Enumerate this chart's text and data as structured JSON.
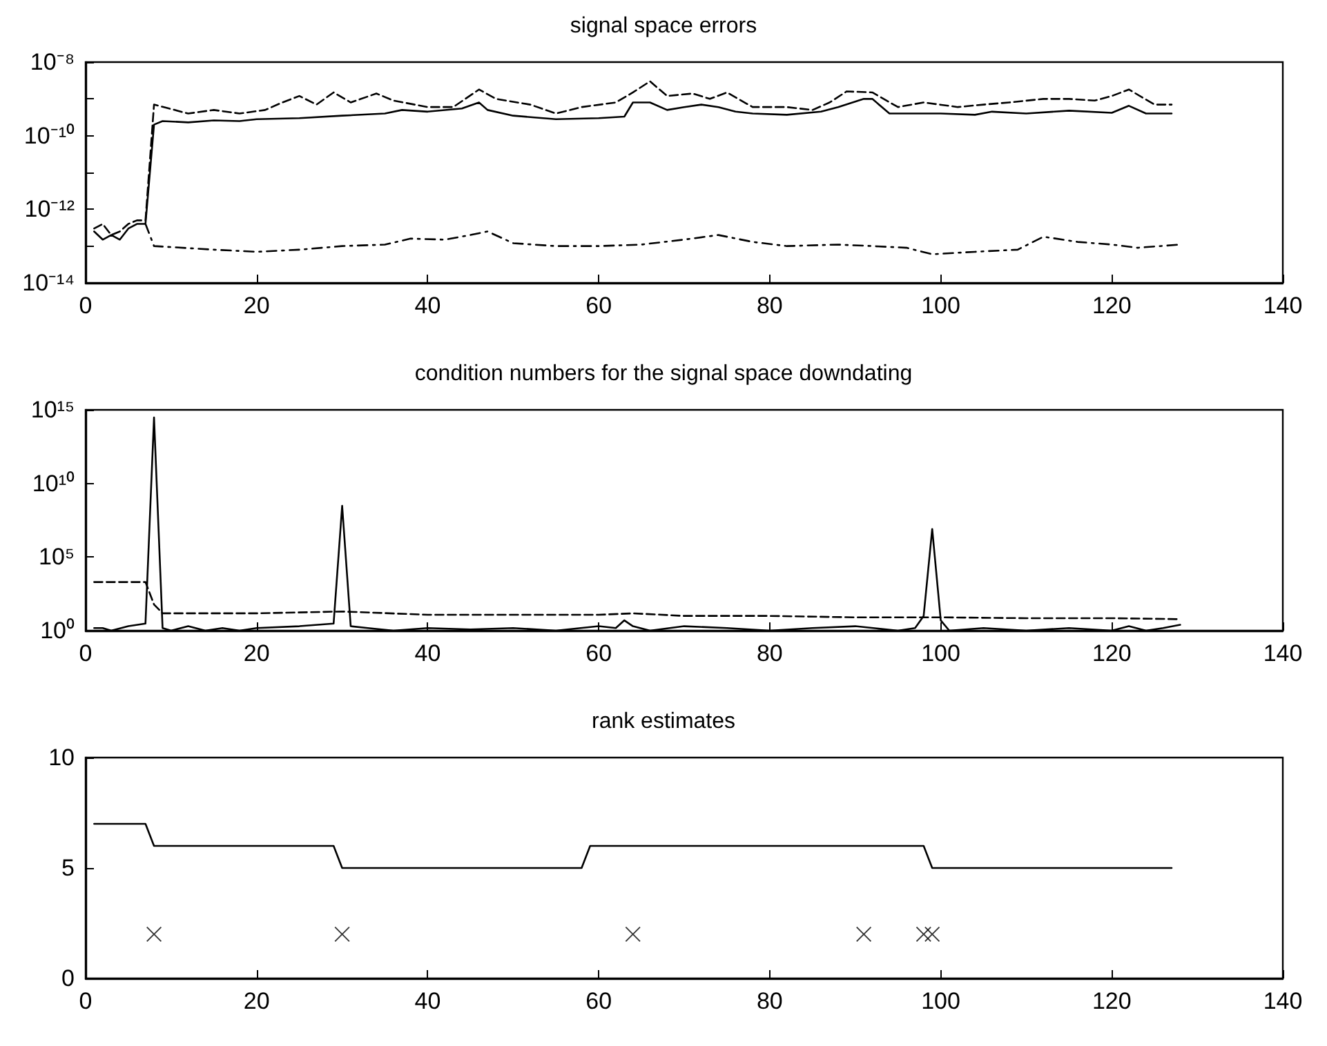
{
  "chart_data": [
    {
      "type": "line",
      "title": "signal space errors",
      "log": "y",
      "xlim": [
        0,
        140
      ],
      "xticks": [
        0,
        20,
        40,
        60,
        80,
        100,
        120,
        140
      ],
      "ylim": [
        1e-14,
        1e-08
      ],
      "yticks": [
        {
          "value": 1e-14,
          "label": "10⁻¹⁴"
        },
        {
          "value": 1e-13,
          "label": null
        },
        {
          "value": 1e-12,
          "label": "10⁻¹²"
        },
        {
          "value": 1e-11,
          "label": null
        },
        {
          "value": 1e-10,
          "label": "10⁻¹⁰"
        },
        {
          "value": 1e-09,
          "label": null
        },
        {
          "value": 1e-08,
          "label": "10⁻⁸"
        }
      ],
      "grid": false,
      "marker": "none",
      "series": [
        {
          "color": "#000000",
          "line_style": "solid",
          "x": [
            1,
            2,
            3,
            4,
            5,
            6,
            7,
            8,
            9,
            12,
            15,
            18,
            20,
            25,
            30,
            35,
            37,
            40,
            44,
            46,
            47,
            50,
            55,
            60,
            63,
            64,
            66,
            68,
            70,
            72,
            74,
            76,
            78,
            82,
            86,
            88,
            91,
            92,
            94,
            100,
            104,
            106,
            110,
            115,
            120,
            122,
            124,
            127
          ],
          "values": [
            2.5e-13,
            1.5e-13,
            2e-13,
            1.5e-13,
            3e-13,
            4e-13,
            4e-13,
            2e-10,
            2.5e-10,
            2.3e-10,
            2.6e-10,
            2.5e-10,
            2.8e-10,
            3e-10,
            3.5e-10,
            4e-10,
            5e-10,
            4.5e-10,
            5.5e-10,
            8e-10,
            5e-10,
            3.5e-10,
            2.8e-10,
            3e-10,
            3.3e-10,
            8e-10,
            8e-10,
            5e-10,
            6e-10,
            7e-10,
            6e-10,
            4.5e-10,
            4e-10,
            3.7e-10,
            4.5e-10,
            6e-10,
            1e-09,
            1e-09,
            4e-10,
            4e-10,
            3.7e-10,
            4.5e-10,
            4e-10,
            4.8e-10,
            4.2e-10,
            6.5e-10,
            4e-10,
            4e-10
          ]
        },
        {
          "color": "#000000",
          "line_style": "dashed",
          "x": [
            1,
            2,
            3,
            4,
            5,
            6,
            7,
            8,
            12,
            15,
            18,
            21,
            23,
            25,
            27,
            29,
            31,
            34,
            36,
            40,
            43,
            46,
            48,
            52,
            55,
            58,
            62,
            64,
            66,
            68,
            71,
            73,
            75,
            78,
            82,
            85,
            87,
            89,
            92,
            95,
            98,
            102,
            105,
            108,
            112,
            115,
            118,
            120,
            122,
            125,
            127
          ],
          "values": [
            3e-13,
            4e-13,
            2e-13,
            2.5e-13,
            4e-13,
            5e-13,
            5e-13,
            7e-10,
            4e-10,
            5e-10,
            4e-10,
            5e-10,
            8e-10,
            1.2e-09,
            7e-10,
            1.5e-09,
            8e-10,
            1.4e-09,
            9e-10,
            6e-10,
            6e-10,
            1.8e-09,
            1e-09,
            7e-10,
            4e-10,
            6e-10,
            8e-10,
            1.5e-09,
            3e-09,
            1.2e-09,
            1.4e-09,
            1e-09,
            1.5e-09,
            6e-10,
            6e-10,
            5e-10,
            8e-10,
            1.6e-09,
            1.5e-09,
            6e-10,
            8e-10,
            6e-10,
            7e-10,
            8e-10,
            1e-09,
            1e-09,
            9e-10,
            1.2e-09,
            1.8e-09,
            7e-10,
            7e-10
          ]
        },
        {
          "color": "#000000",
          "line_style": "dashdot",
          "x": [
            7,
            8,
            15,
            20,
            25,
            30,
            35,
            38,
            42,
            45,
            47,
            50,
            55,
            60,
            65,
            70,
            74,
            78,
            82,
            88,
            92,
            96,
            99,
            104,
            109,
            112,
            116,
            120,
            123,
            128
          ],
          "values": [
            4e-13,
            1e-13,
            8e-14,
            7e-14,
            8e-14,
            1e-13,
            1.1e-13,
            1.6e-13,
            1.5e-13,
            2e-13,
            2.5e-13,
            1.2e-13,
            1e-13,
            1e-13,
            1.1e-13,
            1.5e-13,
            2e-13,
            1.3e-13,
            1e-13,
            1.1e-13,
            1e-13,
            9e-14,
            6e-14,
            7e-14,
            8e-14,
            1.8e-13,
            1.3e-13,
            1.1e-13,
            9e-14,
            1.1e-13
          ]
        }
      ]
    },
    {
      "type": "line",
      "title": "condition numbers for the signal space downdating",
      "log": "y",
      "xlim": [
        0,
        140
      ],
      "xticks": [
        0,
        20,
        40,
        60,
        80,
        100,
        120,
        140
      ],
      "ylim": [
        1,
        1000000000000000.0
      ],
      "yticks": [
        {
          "value": 1,
          "label": "10⁰"
        },
        {
          "value": 100000.0,
          "label": "10⁵"
        },
        {
          "value": 10000000000.0,
          "label": "10¹⁰"
        },
        {
          "value": 1000000000000000.0,
          "label": "10¹⁵"
        }
      ],
      "grid": false,
      "marker": "none",
      "series": [
        {
          "color": "#000000",
          "line_style": "solid",
          "x": [
            1,
            2,
            3,
            5,
            7,
            8,
            9,
            10,
            12,
            14,
            16,
            18,
            20,
            25,
            29,
            30,
            31,
            33,
            36,
            40,
            45,
            50,
            55,
            60,
            62,
            63,
            64,
            66,
            70,
            75,
            80,
            85,
            90,
            95,
            97,
            98,
            99,
            100,
            101,
            105,
            110,
            115,
            120,
            122,
            124,
            126,
            128
          ],
          "values": [
            1.5,
            1.5,
            1,
            2,
            3,
            300000000000000.0,
            1.5,
            1,
            2,
            1,
            1.5,
            1,
            1.5,
            2,
            3,
            300000000.0,
            2,
            1.5,
            1,
            1.5,
            1.2,
            1.5,
            1,
            2,
            1.5,
            5,
            2,
            1,
            2,
            1.5,
            1,
            1.5,
            2,
            1,
            1.5,
            10,
            8000000.0,
            5,
            1,
            1.5,
            1,
            1.5,
            1,
            2,
            1,
            1.5,
            2.5
          ]
        },
        {
          "color": "#000000",
          "line_style": "dashed",
          "x": [
            1,
            7,
            8,
            9,
            20,
            30,
            40,
            50,
            60,
            64,
            70,
            80,
            90,
            100,
            110,
            120,
            128
          ],
          "values": [
            2000,
            2000,
            60,
            15,
            15,
            20,
            12,
            12,
            12,
            15,
            10,
            10,
            8,
            8,
            7,
            7,
            6
          ]
        }
      ]
    },
    {
      "type": "line",
      "title": "rank estimates",
      "xlim": [
        0,
        140
      ],
      "xticks": [
        0,
        20,
        40,
        60,
        80,
        100,
        120,
        140
      ],
      "ylim": [
        0,
        10
      ],
      "yticks": [
        0,
        5,
        10
      ],
      "grid": false,
      "marker": "none",
      "series": [
        {
          "color": "#000000",
          "line_style": "solid",
          "x": [
            1,
            7,
            8,
            29,
            30,
            58,
            59,
            98,
            99,
            127
          ],
          "values": [
            7,
            7,
            6,
            6,
            5,
            5,
            6,
            6,
            5,
            5
          ]
        },
        {
          "type": "scatter",
          "marker": "cross",
          "color": "#000000",
          "x": [
            8,
            30,
            64,
            91,
            98,
            99
          ],
          "values": [
            2,
            2,
            2,
            2,
            2,
            2
          ]
        }
      ]
    }
  ]
}
